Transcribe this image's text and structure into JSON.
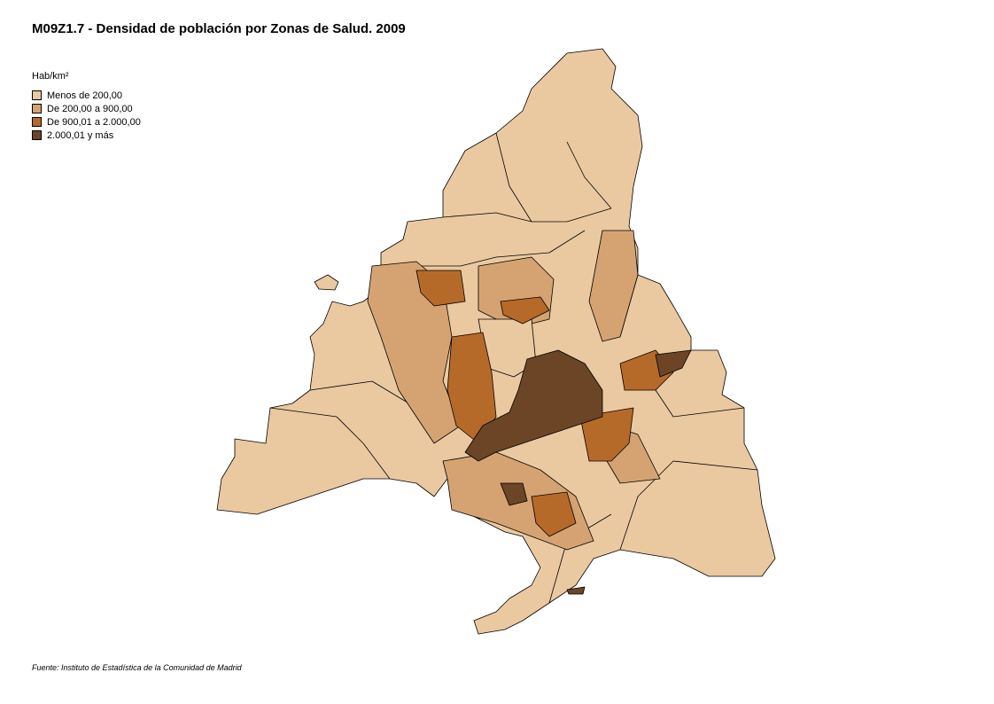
{
  "header": {
    "title": "M09Z1.7 - Densidad de población por Zonas de Salud. 2009"
  },
  "legend": {
    "title": "Hab/km²",
    "items": [
      {
        "label": "Menos de 200,00",
        "color": "#eac9a1"
      },
      {
        "label": "De 200,00 a 900,00",
        "color": "#d5a372"
      },
      {
        "label": "De 900,01 a 2.000,00",
        "color": "#b66a2a"
      },
      {
        "label": "2.000,01 y más",
        "color": "#6b4526"
      }
    ]
  },
  "footer": {
    "source": "Fuente: Instituto de Estadística de la Comunidad de Madrid"
  }
}
